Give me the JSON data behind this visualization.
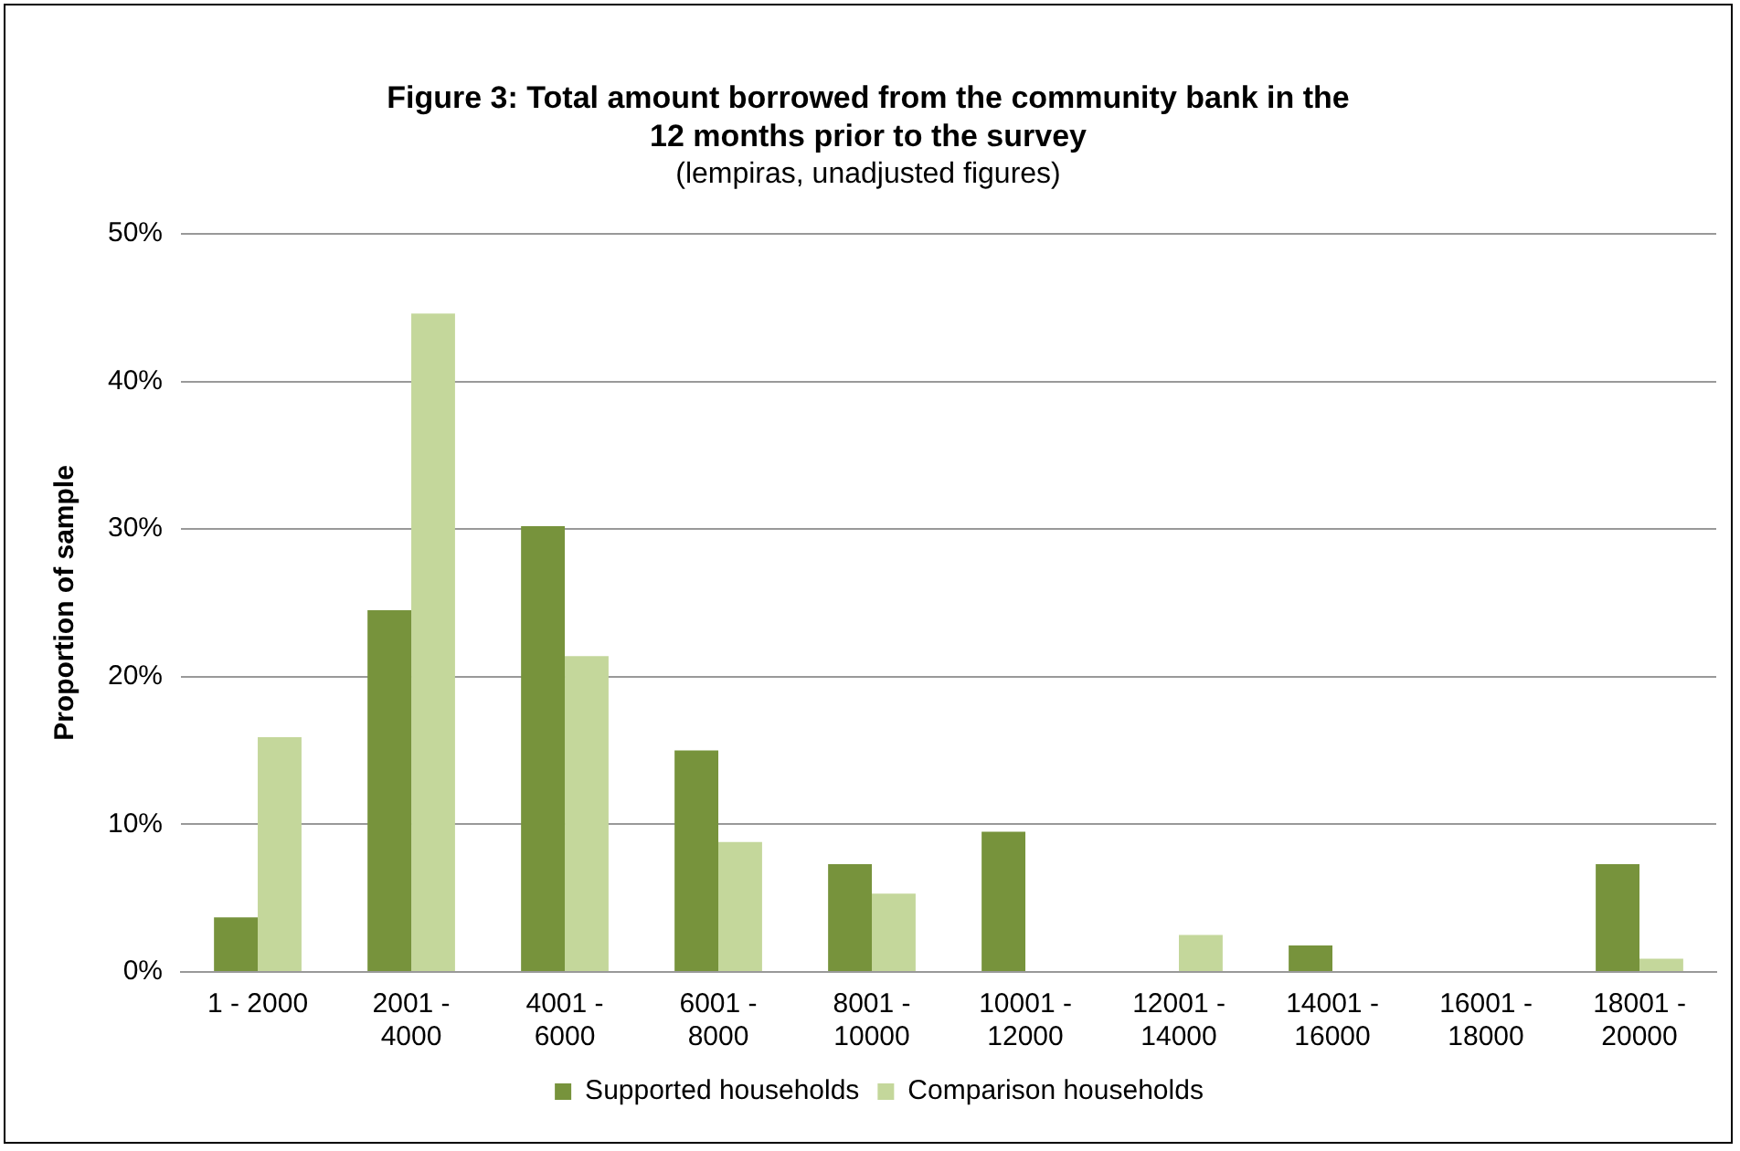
{
  "chart_data": {
    "type": "bar",
    "title": "Figure 3: Total amount borrowed from the community bank in the 12 months prior to the survey",
    "subtitle": "(lempiras, unadjusted figures)",
    "ylabel": "Proportion of sample",
    "categories": [
      "1 - 2000",
      "2001 - 4000",
      "4001 - 6000",
      "6001 - 8000",
      "8001 - 10000",
      "10001 - 12000",
      "12001 - 14000",
      "14001 - 16000",
      "16001 - 18000",
      "18001 - 20000"
    ],
    "series": [
      {
        "name": "Supported households",
        "color": "#77933c",
        "values": [
          3.7,
          24.5,
          30.2,
          15.0,
          7.3,
          9.5,
          0,
          1.8,
          0,
          7.3
        ]
      },
      {
        "name": "Comparison households",
        "color": "#c4d79b",
        "values": [
          15.9,
          44.6,
          21.4,
          8.8,
          5.3,
          0,
          2.5,
          0,
          0,
          0.9
        ]
      }
    ],
    "ylim": [
      0,
      50
    ],
    "yticks": [
      {
        "value": 0,
        "label": "0%"
      },
      {
        "value": 10,
        "label": "10%"
      },
      {
        "value": 20,
        "label": "20%"
      },
      {
        "value": 30,
        "label": "30%"
      },
      {
        "value": 40,
        "label": "40%"
      },
      {
        "value": 50,
        "label": "50%"
      }
    ],
    "grid": "y",
    "legend": "bottom"
  }
}
